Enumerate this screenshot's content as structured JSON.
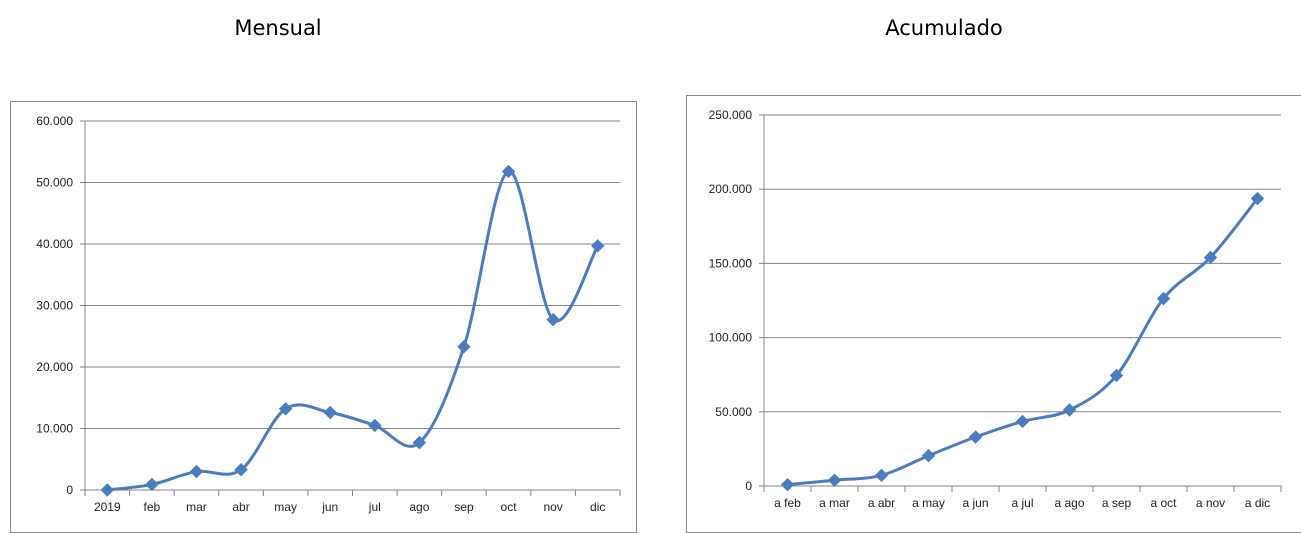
{
  "colors": {
    "series": "#4a7cc0",
    "grid": "#868686",
    "axis": "#868686"
  },
  "chart_data": [
    {
      "type": "line",
      "title": "Mensual",
      "categories": [
        "2019",
        "feb",
        "mar",
        "abr",
        "may",
        "jun",
        "jul",
        "ago",
        "sep",
        "oct",
        "nov",
        "dic"
      ],
      "values": [
        0,
        900,
        3000,
        3300,
        13200,
        12600,
        10500,
        7700,
        23300,
        51800,
        27700,
        39700
      ],
      "ylim": [
        0,
        60000
      ],
      "yticks": [
        0,
        10000,
        20000,
        30000,
        40000,
        50000,
        60000
      ],
      "ytick_labels": [
        "0",
        "10.000",
        "20.000",
        "30.000",
        "40.000",
        "50.000",
        "60.000"
      ],
      "grid": true,
      "smooth": true,
      "marker": "diamond"
    },
    {
      "type": "line",
      "title": "Acumulado",
      "categories": [
        "a feb",
        "a mar",
        "a abr",
        "a may",
        "a jun",
        "a jul",
        "a ago",
        "a sep",
        "a oct",
        "a nov",
        "a dic"
      ],
      "values": [
        900,
        3900,
        7200,
        20400,
        33000,
        43500,
        51200,
        74500,
        126300,
        154000,
        193700
      ],
      "ylim": [
        0,
        250000
      ],
      "yticks": [
        0,
        50000,
        100000,
        150000,
        200000,
        250000
      ],
      "ytick_labels": [
        "0",
        "50.000",
        "100.000",
        "150.000",
        "200.000",
        "250.000"
      ],
      "grid": true,
      "smooth": true,
      "marker": "diamond"
    }
  ]
}
